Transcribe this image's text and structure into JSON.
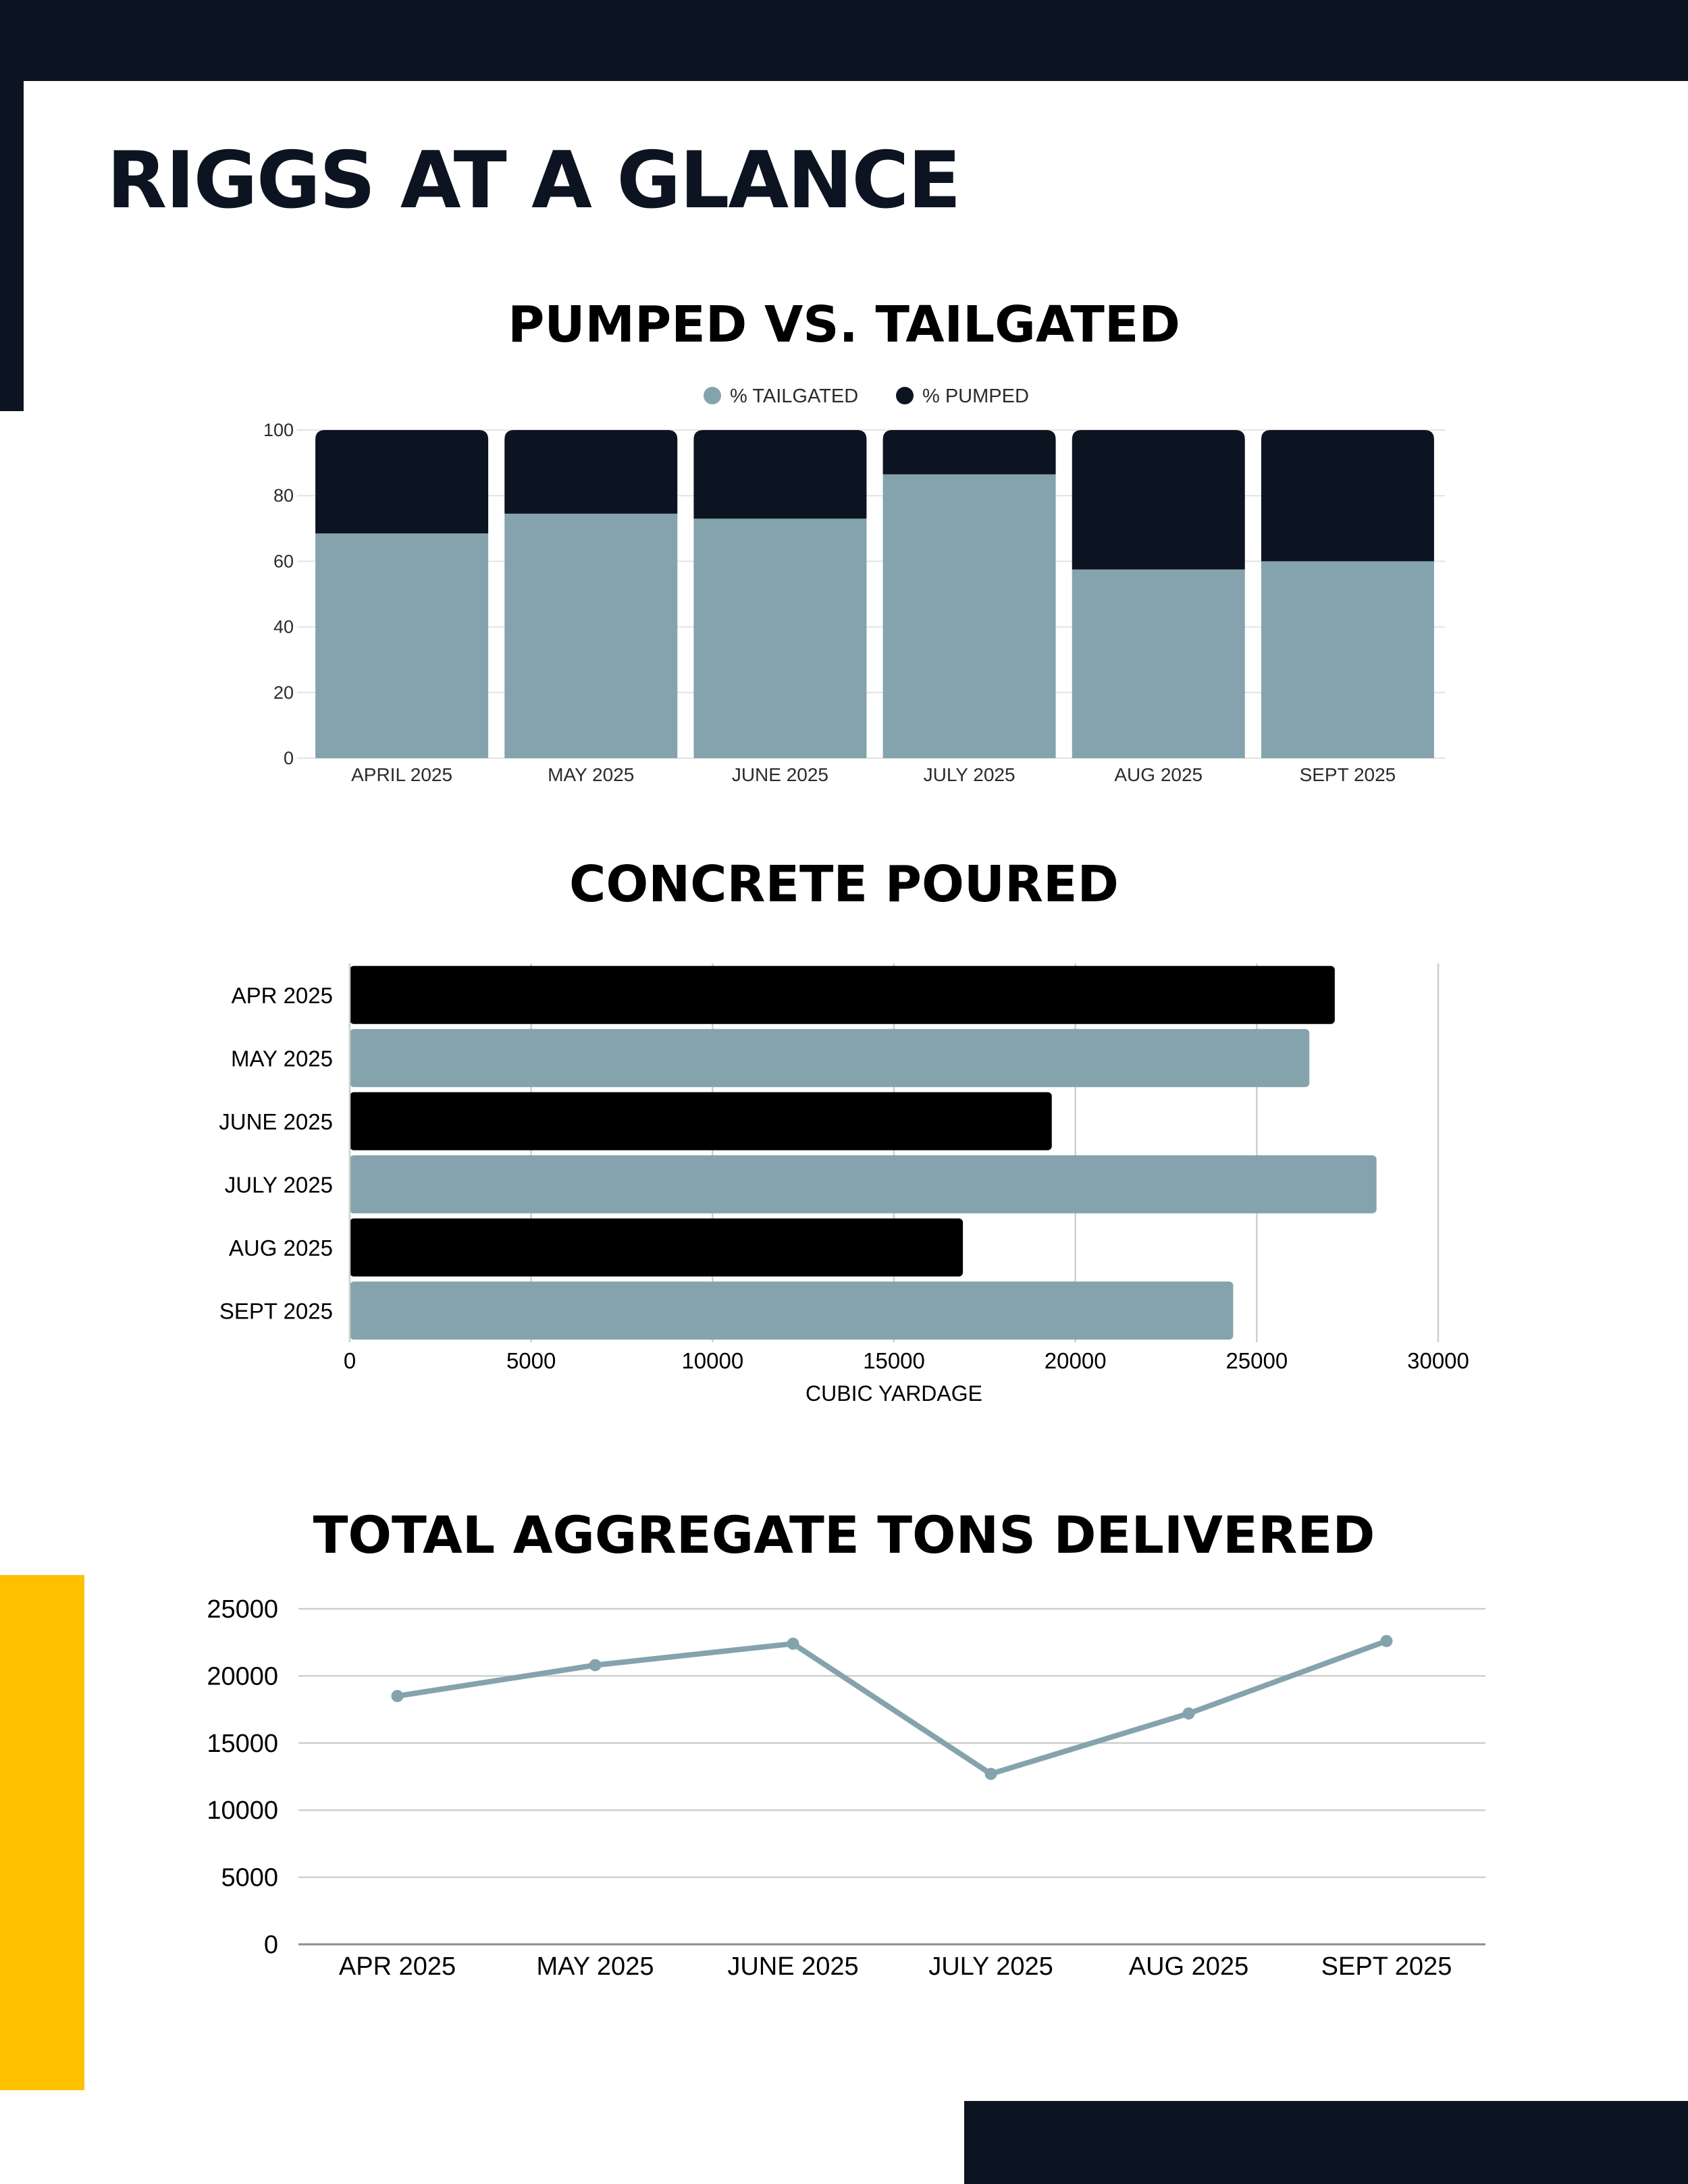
{
  "page": {
    "title": "RIGGS AT A GLANCE",
    "colors": {
      "navy": "#0d1421",
      "slate": "#84a3ad",
      "black": "#000000",
      "yellow": "#ffc000",
      "grid": "#d4d4d4"
    }
  },
  "chart_data": [
    {
      "type": "bar",
      "stacked": true,
      "title": "PUMPED VS. TAILGATED",
      "categories": [
        "APRIL 2025",
        "MAY 2025",
        "JUNE 2025",
        "JULY 2025",
        "AUG 2025",
        "SEPT 2025"
      ],
      "series": [
        {
          "name": "% TAILGATED",
          "color": "#84a3ad",
          "values": [
            68.5,
            74.5,
            73,
            86.5,
            57.5,
            60
          ]
        },
        {
          "name": "% PUMPED",
          "color": "#0d1421",
          "values": [
            31.5,
            25.5,
            27,
            13.5,
            42.5,
            40
          ]
        }
      ],
      "ylim": [
        0,
        100
      ],
      "yticks": [
        "0",
        "20",
        "40",
        "60",
        "80",
        "100"
      ],
      "legend": "top-center",
      "grid": true
    },
    {
      "type": "bar",
      "orientation": "horizontal",
      "title": "CONCRETE POURED",
      "categories": [
        "APR 2025",
        "MAY 2025",
        "JUNE 2025",
        "JULY 2025",
        "AUG 2025",
        "SEPT 2025"
      ],
      "values": [
        27150,
        26450,
        19350,
        28300,
        16900,
        24350
      ],
      "bar_colors": [
        "#000000",
        "#84a3ad",
        "#000000",
        "#84a3ad",
        "#000000",
        "#84a3ad"
      ],
      "xlabel": "CUBIC YARDAGE",
      "xlim": [
        0,
        30000
      ],
      "xticks": [
        "0",
        "5000",
        "10000",
        "15000",
        "20000",
        "25000",
        "30000"
      ],
      "grid": true
    },
    {
      "type": "line",
      "title": "TOTAL AGGREGATE TONS DELIVERED",
      "categories": [
        "APR 2025",
        "MAY 2025",
        "JUNE 2025",
        "JULY 2025",
        "AUG 2025",
        "SEPT 2025"
      ],
      "values": [
        18500,
        20800,
        22400,
        12700,
        17200,
        22600
      ],
      "color": "#84a3ad",
      "ylim": [
        0,
        25000
      ],
      "yticks": [
        "0",
        "5000",
        "10000",
        "15000",
        "20000",
        "25000"
      ],
      "grid": true
    }
  ]
}
